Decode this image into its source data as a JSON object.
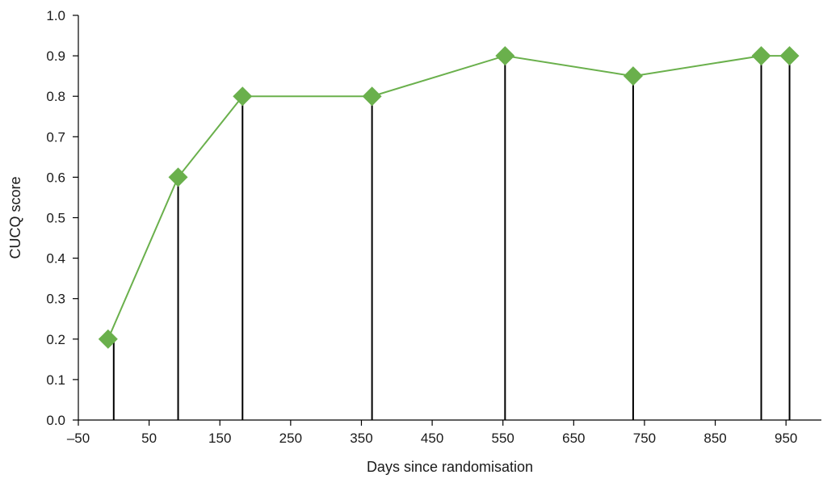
{
  "chart_data": {
    "type": "line",
    "title": "",
    "xlabel": "Days since randomisation",
    "ylabel": "CUCQ score",
    "xlim": [
      -50,
      1000
    ],
    "ylim": [
      0,
      1.0
    ],
    "x_ticks": [
      -50,
      50,
      150,
      250,
      350,
      450,
      550,
      650,
      750,
      850,
      950
    ],
    "x_tick_labels": [
      "–50",
      "50",
      "150",
      "250",
      "350",
      "450",
      "550",
      "650",
      "750",
      "850",
      "950"
    ],
    "y_ticks": [
      0,
      0.1,
      0.2,
      0.3,
      0.4,
      0.5,
      0.6,
      0.7,
      0.8,
      0.9,
      1.0
    ],
    "y_tick_labels": [
      "0.0",
      "0.1",
      "0.2",
      "0.3",
      "0.4",
      "0.5",
      "0.6",
      "0.7",
      "0.8",
      "0.9",
      "1.0"
    ],
    "grid": false,
    "legend": "none",
    "series": [
      {
        "marker": "diamond",
        "color": "#6ab04c",
        "points": [
          {
            "x": -8,
            "y": 0.2
          },
          {
            "x": 91,
            "y": 0.6
          },
          {
            "x": 182,
            "y": 0.8
          },
          {
            "x": 365,
            "y": 0.8
          },
          {
            "x": 553,
            "y": 0.9
          },
          {
            "x": 734,
            "y": 0.85
          },
          {
            "x": 915,
            "y": 0.9
          },
          {
            "x": 955,
            "y": 0.9
          }
        ]
      }
    ],
    "vertical_lines": {
      "color": "#000000",
      "x": [
        0,
        91,
        182,
        365,
        553,
        734,
        915,
        955
      ]
    }
  }
}
